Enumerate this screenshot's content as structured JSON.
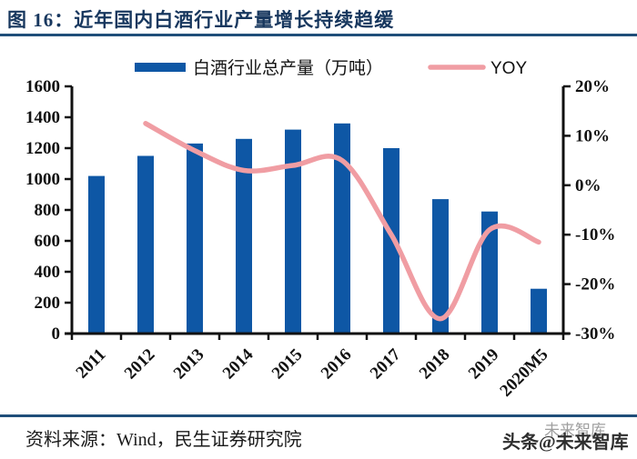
{
  "header": {
    "figure_label": "图 16："
  },
  "chart_data": {
    "type": "bar",
    "title": "图 16：近年国内白酒行业产量增长持续趋缓",
    "categories": [
      "2011",
      "2012",
      "2013",
      "2014",
      "2015",
      "2016",
      "2017",
      "2018",
      "2019",
      "2020M5"
    ],
    "series": [
      {
        "name": "白酒行业总产量（万吨）",
        "type": "bar",
        "axis": "left",
        "color": "#0E57A5",
        "values": [
          1020,
          1150,
          1230,
          1260,
          1320,
          1360,
          1200,
          870,
          790,
          290
        ]
      },
      {
        "name": "YOY",
        "type": "line",
        "axis": "right",
        "color": "#F09DA3",
        "values": [
          null,
          12.5,
          7,
          3,
          4,
          5,
          -10,
          -27,
          -9,
          -11.5
        ]
      }
    ],
    "left_axis": {
      "min": 0,
      "max": 1600,
      "step": 200,
      "tick_labels": [
        "0",
        "200",
        "400",
        "600",
        "800",
        "1000",
        "1200",
        "1400",
        "1600"
      ]
    },
    "right_axis": {
      "min": -30,
      "max": 20,
      "step": 10,
      "tick_labels": [
        "20%",
        "10%",
        "0%",
        "-10%",
        "-20%",
        "-30%"
      ]
    },
    "xlabel": "",
    "ylabel": "",
    "grid": false,
    "legend_position": "top",
    "axis_color": "#111111"
  },
  "footer": {
    "source": "资料来源：Wind，民生证券研究院",
    "watermark": "头条@未来智库",
    "watermark_ghost": "未来智库"
  }
}
